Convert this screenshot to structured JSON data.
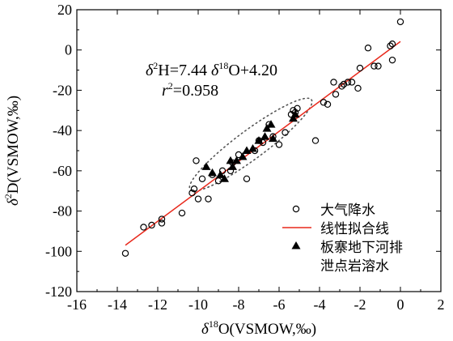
{
  "chart_data": {
    "type": "scatter",
    "xlim": [
      -16,
      2
    ],
    "ylim": [
      -120,
      20
    ],
    "xticks": [
      -16,
      -14,
      -12,
      -10,
      -8,
      -6,
      -4,
      -2,
      0,
      2
    ],
    "yticks": [
      20,
      0,
      -20,
      -40,
      -60,
      -80,
      -100,
      -120
    ],
    "xtick_labels": [
      "-16",
      "-14",
      "-12",
      "-10",
      "-8",
      "-6",
      "-4",
      "-2",
      "0",
      "2"
    ],
    "ytick_labels": [
      "20",
      "0",
      "-20",
      "-40",
      "-60",
      "-80",
      "-100",
      "-120"
    ],
    "xlabel": {
      "delta": "δ",
      "sup": "18",
      "rest": "O(VSMOW,‰)"
    },
    "ylabel": {
      "delta": "δ",
      "sup": "2",
      "rest": "D(VSMOW,‰)"
    },
    "equation": {
      "line1": {
        "d1": "δ",
        "s1": "2",
        "p1": "H=7.44 ",
        "d2": "δ",
        "s2": "18",
        "p2": "O+4.20"
      },
      "line2": {
        "r": "r",
        "s": "2",
        "p": "=0.958"
      }
    },
    "legend": {
      "precipitation": "大气降水",
      "fit_line": "线性拟合线",
      "karst_water_line1": "板寨地下河排",
      "karst_water_line2": "泄点岩溶水"
    },
    "colors": {
      "fit_line": "#e8291c",
      "markers": "#000000",
      "ellipse": "#555555"
    },
    "series": [
      {
        "name": "大气降水",
        "marker": "open-circle",
        "points": [
          [
            -13.6,
            -101
          ],
          [
            -12.7,
            -88
          ],
          [
            -12.3,
            -87
          ],
          [
            -11.8,
            -86
          ],
          [
            -11.8,
            -84
          ],
          [
            -10.8,
            -81
          ],
          [
            -10.3,
            -71
          ],
          [
            -10.2,
            -69
          ],
          [
            -10.0,
            -74
          ],
          [
            -10.1,
            -55
          ],
          [
            -9.8,
            -64
          ],
          [
            -9.5,
            -74
          ],
          [
            -9.3,
            -62
          ],
          [
            -9.0,
            -65
          ],
          [
            -8.8,
            -60
          ],
          [
            -8.4,
            -60
          ],
          [
            -8.3,
            -56
          ],
          [
            -8.0,
            -52
          ],
          [
            -7.6,
            -64
          ],
          [
            -7.2,
            -50
          ],
          [
            -7.0,
            -45
          ],
          [
            -6.8,
            -46
          ],
          [
            -6.5,
            -37
          ],
          [
            -6.3,
            -43
          ],
          [
            -6.0,
            -47
          ],
          [
            -5.7,
            -41
          ],
          [
            -5.4,
            -32
          ],
          [
            -5.3,
            -30
          ],
          [
            -5.2,
            -31
          ],
          [
            -5.1,
            -29
          ],
          [
            -4.2,
            -45
          ],
          [
            -3.8,
            -26
          ],
          [
            -3.6,
            -27
          ],
          [
            -3.2,
            -22
          ],
          [
            -3.3,
            -16
          ],
          [
            -2.9,
            -18
          ],
          [
            -2.8,
            -17
          ],
          [
            -2.6,
            -16
          ],
          [
            -2.4,
            -16
          ],
          [
            -2.1,
            -19
          ],
          [
            -2.0,
            -9
          ],
          [
            -1.6,
            1
          ],
          [
            -1.3,
            -8
          ],
          [
            -1.1,
            -8
          ],
          [
            -0.5,
            2
          ],
          [
            -0.4,
            3
          ],
          [
            -0.4,
            -5
          ],
          [
            0.0,
            14
          ]
        ]
      },
      {
        "name": "板寨地下河排泄点岩溶水",
        "marker": "filled-triangle",
        "points": [
          [
            -9.6,
            -58
          ],
          [
            -9.3,
            -61
          ],
          [
            -8.9,
            -62
          ],
          [
            -8.7,
            -64
          ],
          [
            -8.3,
            -58
          ],
          [
            -8.4,
            -55
          ],
          [
            -8.1,
            -55
          ],
          [
            -7.8,
            -53
          ],
          [
            -7.6,
            -50
          ],
          [
            -7.3,
            -49
          ],
          [
            -7.0,
            -45
          ],
          [
            -6.7,
            -43
          ],
          [
            -6.3,
            -44
          ],
          [
            -6.6,
            -39
          ],
          [
            -6.4,
            -37
          ],
          [
            -5.3,
            -34
          ],
          [
            -5.2,
            -32
          ]
        ]
      }
    ],
    "fit": {
      "slope": 7.44,
      "intercept": 4.2,
      "x_range": [
        -13.6,
        0
      ]
    },
    "ellipse": {
      "center": [
        -7.4,
        -47
      ],
      "x_through": [
        -10.4,
        -4.4
      ],
      "style": "dotted"
    }
  }
}
